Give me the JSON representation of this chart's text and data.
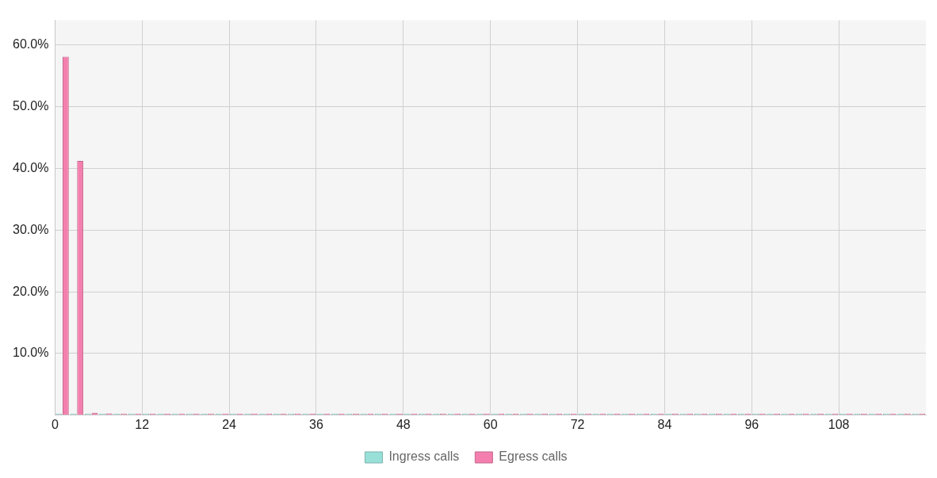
{
  "chart_data": {
    "type": "histogram",
    "bins": [
      0,
      2,
      4,
      6,
      8,
      10,
      12,
      14,
      16,
      18,
      20,
      22,
      24,
      26,
      28,
      30,
      32,
      34,
      36,
      38,
      40,
      42,
      44,
      46,
      48,
      50,
      52,
      54,
      56,
      58,
      60,
      62,
      64,
      66,
      68,
      70,
      72,
      74,
      76,
      78,
      80,
      82,
      84,
      86,
      88,
      90,
      92,
      94,
      96,
      98,
      100,
      102,
      104,
      106,
      108,
      110,
      112,
      114,
      116,
      118,
      120
    ],
    "series": [
      {
        "name": "Ingress calls",
        "color": "#99e0d9",
        "values": [
          0,
          0,
          0,
          0,
          0,
          0,
          0,
          0,
          0,
          0,
          0,
          0,
          0,
          0,
          0,
          0,
          0,
          0,
          0,
          0,
          0,
          0,
          0,
          0,
          0,
          0,
          0,
          0,
          0,
          0,
          0,
          0,
          0,
          0,
          0,
          0,
          0,
          0,
          0,
          0,
          0,
          0,
          0,
          0,
          0,
          0,
          0,
          0,
          0,
          0,
          0,
          0,
          0,
          0,
          0,
          0,
          0,
          0,
          0,
          0
        ]
      },
      {
        "name": "Egress calls",
        "color": "#f47fae",
        "values": [
          58.1,
          41.2,
          0.4,
          0.3,
          0,
          0,
          0,
          0,
          0,
          0,
          0,
          0,
          0,
          0,
          0,
          0,
          0,
          0,
          0,
          0,
          0,
          0,
          0,
          0,
          0,
          0,
          0,
          0,
          0,
          0,
          0,
          0,
          0,
          0,
          0,
          0,
          0,
          0,
          0,
          0,
          0,
          0,
          0,
          0,
          0,
          0,
          0,
          0,
          0,
          0,
          0,
          0,
          0,
          0,
          0,
          0,
          0,
          0,
          0,
          0
        ]
      }
    ],
    "xlim": [
      0,
      120
    ],
    "xticks": [
      0,
      12,
      24,
      36,
      48,
      60,
      72,
      84,
      96,
      108
    ],
    "ylim": [
      0,
      64
    ],
    "yticks": [
      {
        "value": 0,
        "label": null
      },
      {
        "value": 10,
        "label": "10.0%"
      },
      {
        "value": 20,
        "label": "20.0%"
      },
      {
        "value": 30,
        "label": "30.0%"
      },
      {
        "value": 40,
        "label": "40.0%"
      },
      {
        "value": 50,
        "label": "50.0%"
      },
      {
        "value": 60,
        "label": "60.0%"
      }
    ],
    "grid": true,
    "legend": "bottom"
  }
}
